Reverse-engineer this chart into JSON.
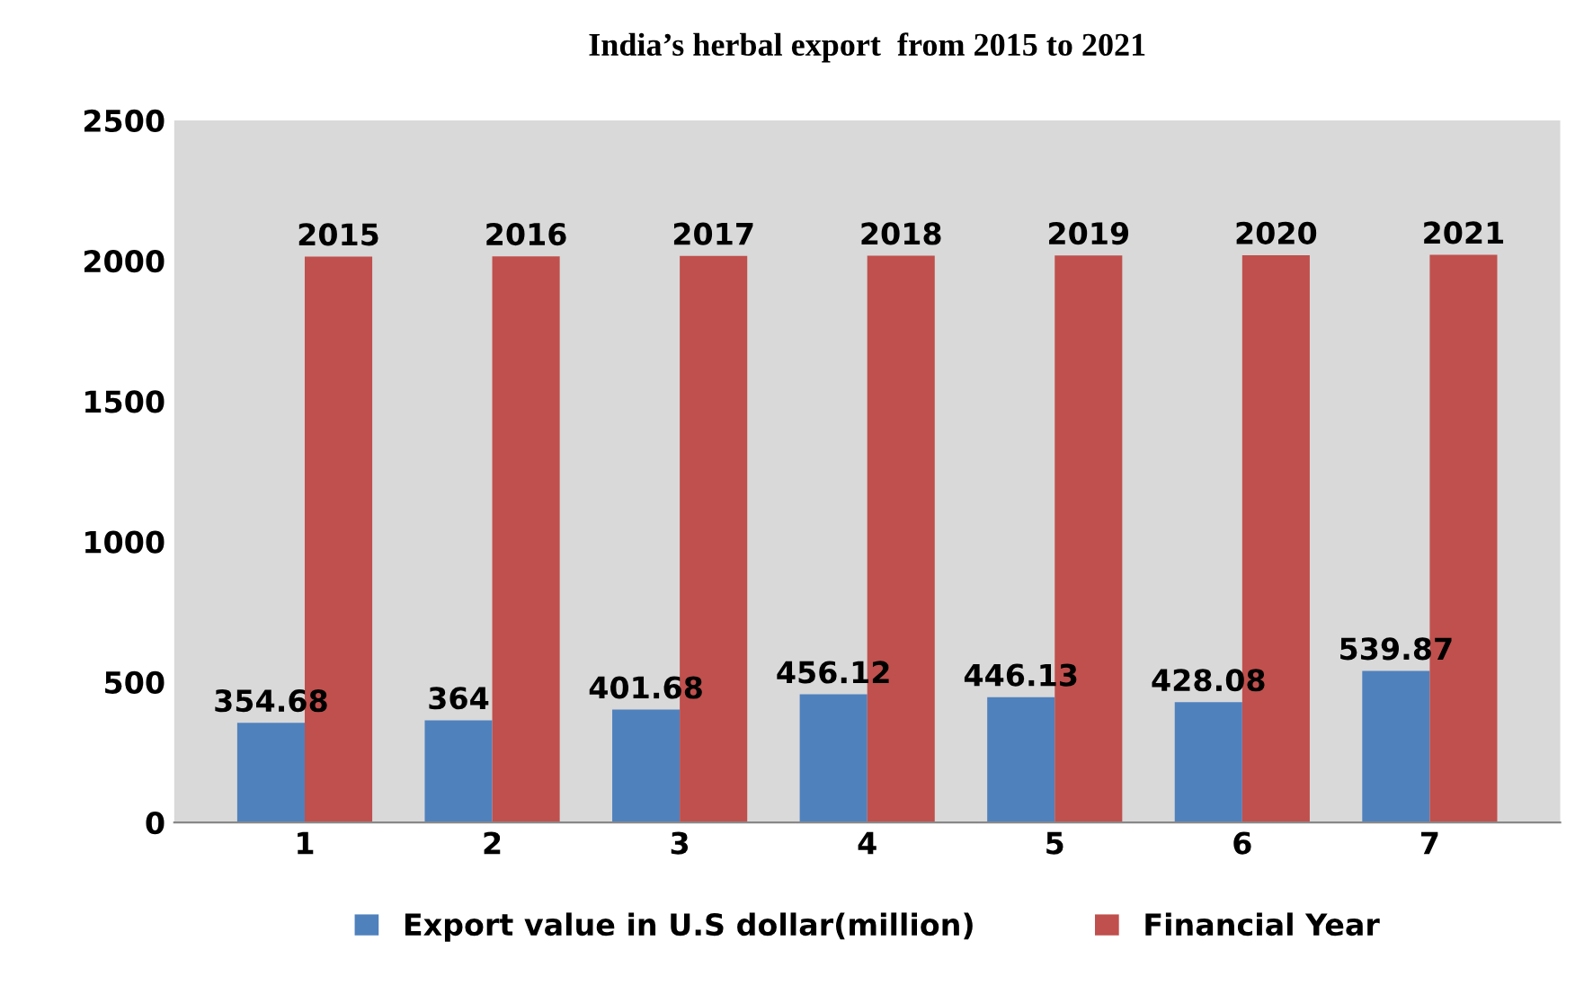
{
  "chart_data": {
    "type": "bar",
    "title": "India’s herbal export  from 2015 to 2021",
    "categories": [
      "1",
      "2",
      "3",
      "4",
      "5",
      "6",
      "7"
    ],
    "series": [
      {
        "name": "Export value in U.S dollar(million)",
        "color": "#4f81bd",
        "values": [
          354.68,
          364,
          401.68,
          456.12,
          446.13,
          428.08,
          539.87
        ]
      },
      {
        "name": "Financial Year",
        "color": "#c0504d",
        "values": [
          2015,
          2016,
          2017,
          2018,
          2019,
          2020,
          2021
        ]
      }
    ],
    "ylim": [
      0,
      2500
    ],
    "yticks": [
      0,
      500,
      1000,
      1500,
      2000,
      2500
    ],
    "data_labels": true,
    "grid": false,
    "legend": "bottom"
  }
}
